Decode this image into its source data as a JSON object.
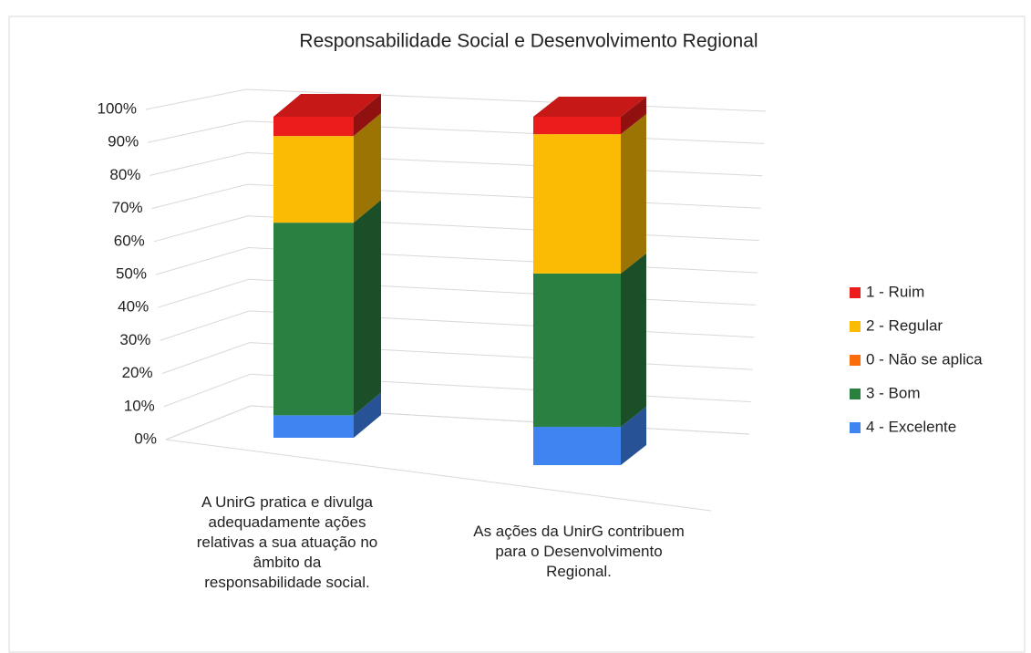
{
  "chart_data": {
    "type": "bar3d_stacked",
    "title": "Responsabilidade Social e Desenvolvimento Regional",
    "categories": [
      "A UnirG pratica e divulga adequadamente ações relativas a sua atuação no âmbito da responsabilidade social.",
      "As ações da UnirG contribuem para o Desenvolvimento Regional."
    ],
    "series": [
      {
        "name": "4 - Excelente",
        "color": "#3f84f0",
        "values": [
          7,
          11
        ]
      },
      {
        "name": "3 - Bom",
        "color": "#2a8040",
        "values": [
          60,
          44
        ]
      },
      {
        "name": "0 - Não se aplica",
        "color": "#fa6c0a",
        "values": [
          0,
          0
        ]
      },
      {
        "name": "2 - Regular",
        "color": "#fbbb05",
        "values": [
          27,
          40
        ]
      },
      {
        "name": "1 - Ruim",
        "color": "#ea1c1c",
        "values": [
          6,
          5
        ]
      }
    ],
    "ylim": [
      0,
      100
    ],
    "yticks": [
      {
        "value": 0,
        "label": "0%"
      },
      {
        "value": 10,
        "label": "10%"
      },
      {
        "value": 20,
        "label": "20%"
      },
      {
        "value": 30,
        "label": "30%"
      },
      {
        "value": 40,
        "label": "40%"
      },
      {
        "value": 50,
        "label": "50%"
      },
      {
        "value": 60,
        "label": "60%"
      },
      {
        "value": 70,
        "label": "70%"
      },
      {
        "value": 80,
        "label": "80%"
      },
      {
        "value": 90,
        "label": "90%"
      },
      {
        "value": 100,
        "label": "100%"
      }
    ],
    "grid": true,
    "legend": "right"
  }
}
